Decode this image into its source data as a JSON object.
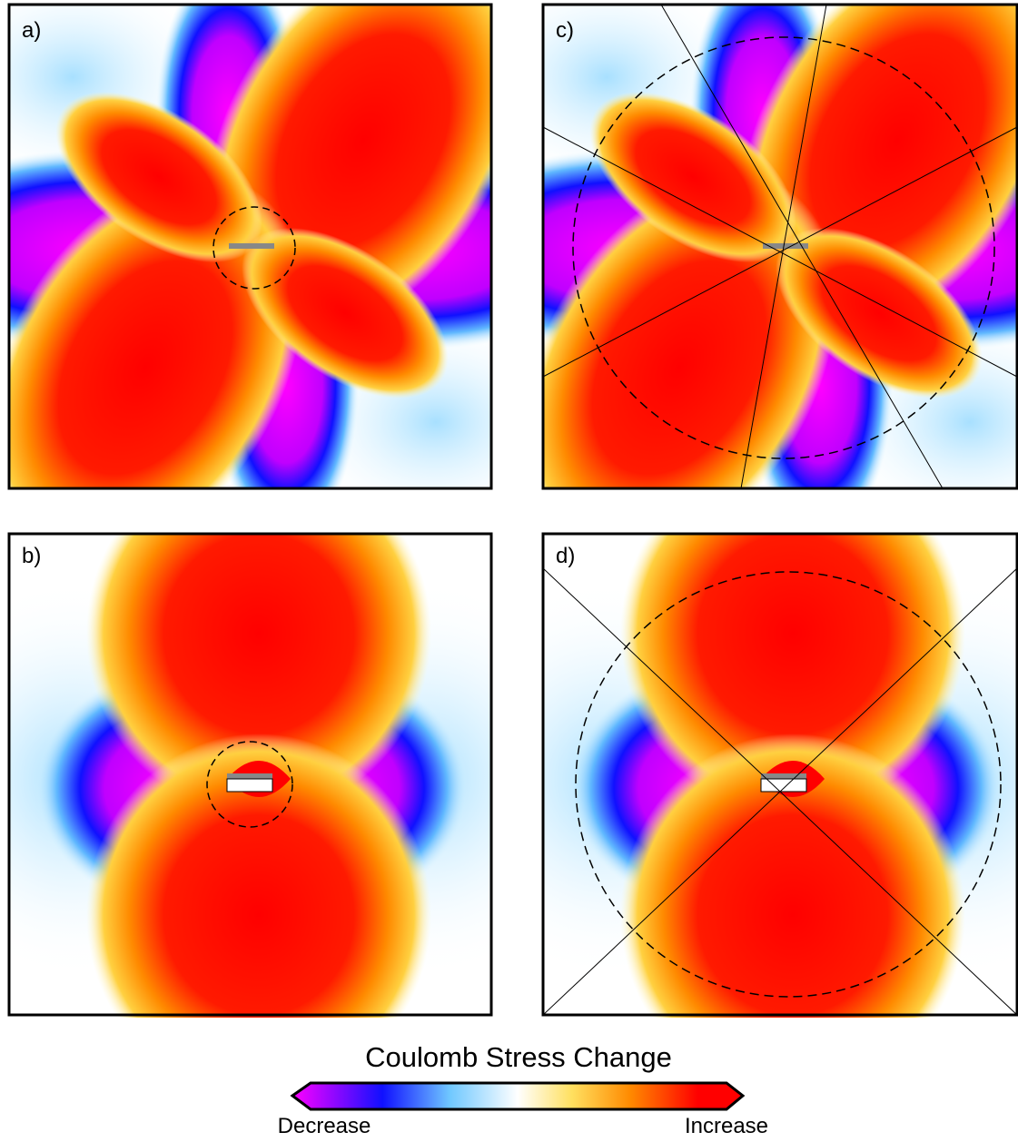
{
  "panels": [
    {
      "label": "a)"
    },
    {
      "label": "b)"
    },
    {
      "label": "c)"
    },
    {
      "label": "d)"
    }
  ],
  "colorbar": {
    "title": "Coulomb Stress Change",
    "low_label": "Decrease",
    "high_label": "Increase"
  }
}
